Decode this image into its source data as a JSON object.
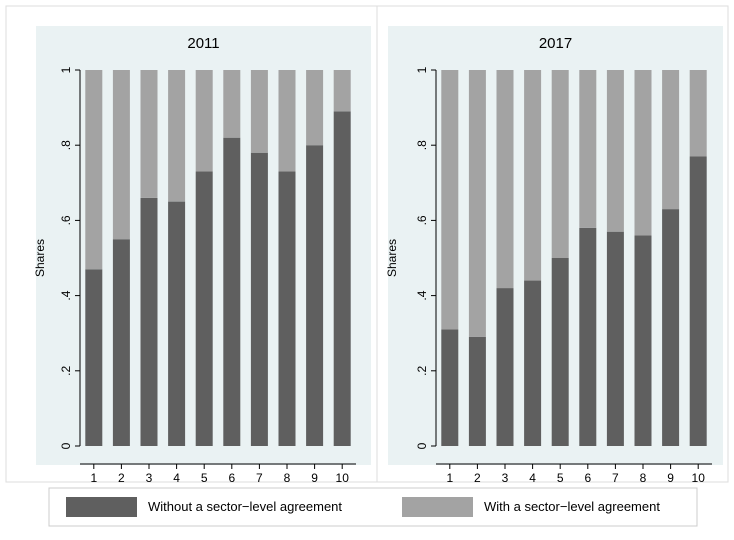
{
  "chart_data": [
    {
      "type": "bar",
      "stacked": true,
      "title": "2011",
      "ylabel": "Shares",
      "ylim": [
        0,
        1
      ],
      "yticks": [
        "0",
        ".2",
        ".4",
        ".6",
        ".8",
        "1"
      ],
      "categories": [
        "1",
        "2",
        "3",
        "4",
        "5",
        "6",
        "7",
        "8",
        "9",
        "10"
      ],
      "series": [
        {
          "name": "Without a sector−level agreement",
          "color": "#5f5f5f",
          "values": [
            0.47,
            0.55,
            0.66,
            0.65,
            0.73,
            0.82,
            0.78,
            0.73,
            0.8,
            0.89
          ]
        },
        {
          "name": "With a sector−level agreement",
          "color": "#a3a3a3",
          "values": [
            0.53,
            0.45,
            0.34,
            0.35,
            0.27,
            0.18,
            0.22,
            0.27,
            0.2,
            0.11
          ]
        }
      ]
    },
    {
      "type": "bar",
      "stacked": true,
      "title": "2017",
      "ylabel": "Shares",
      "ylim": [
        0,
        1
      ],
      "yticks": [
        "0",
        ".2",
        ".4",
        ".6",
        ".8",
        "1"
      ],
      "categories": [
        "1",
        "2",
        "3",
        "4",
        "5",
        "6",
        "7",
        "8",
        "9",
        "10"
      ],
      "series": [
        {
          "name": "Without a sector−level agreement",
          "color": "#5f5f5f",
          "values": [
            0.31,
            0.29,
            0.42,
            0.44,
            0.5,
            0.58,
            0.57,
            0.56,
            0.63,
            0.77
          ]
        },
        {
          "name": "With a sector−level agreement",
          "color": "#a3a3a3",
          "values": [
            0.69,
            0.71,
            0.58,
            0.56,
            0.5,
            0.42,
            0.43,
            0.44,
            0.37,
            0.23
          ]
        }
      ]
    }
  ],
  "legend": {
    "placement": "bottom",
    "items": [
      {
        "label": "Without a sector−level agreement",
        "color": "#5f5f5f"
      },
      {
        "label": "With a sector−level agreement",
        "color": "#a3a3a3"
      }
    ]
  },
  "colors": {
    "panel_bg": "#ffffff",
    "plot_bg": "#eaf2f3",
    "title_bg": "#eaf2f3"
  }
}
